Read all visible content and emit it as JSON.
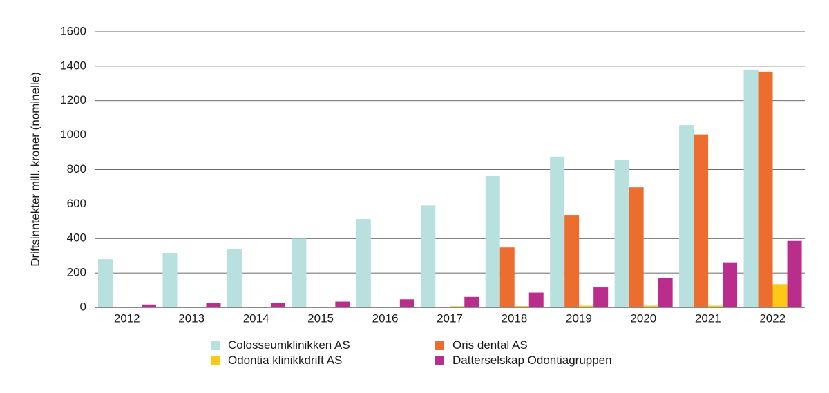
{
  "chart_data": {
    "type": "bar",
    "title": "",
    "xlabel": "",
    "ylabel": "Driftsinntekter mill. kroner (nominelle)",
    "ylim": [
      0,
      1600
    ],
    "yticks": [
      "0",
      "200",
      "400",
      "600",
      "800",
      "1000",
      "1200",
      "1400",
      "1600"
    ],
    "grid": true,
    "legend_position": "bottom",
    "categories": [
      "2012",
      "2013",
      "2014",
      "2015",
      "2016",
      "2017",
      "2018",
      "2019",
      "2020",
      "2021",
      "2022"
    ],
    "series": [
      {
        "name": "Colosseumklinikken AS",
        "color": "#b7e0df",
        "values": [
          280,
          315,
          337,
          400,
          513,
          592,
          762,
          875,
          855,
          1058,
          1380
        ]
      },
      {
        "name": "Oris dental AS",
        "color": "#ec6d2d",
        "values": [
          0,
          0,
          0,
          0,
          0,
          0,
          348,
          533,
          697,
          1004,
          1368
        ]
      },
      {
        "name": "Odontia klinikkdrift AS",
        "color": "#fcc917",
        "values": [
          0,
          0,
          0,
          0,
          0,
          7,
          8,
          10,
          10,
          10,
          135
        ]
      },
      {
        "name": "Datterselskap Odontiagruppen",
        "color": "#b92d8d",
        "values": [
          17,
          24,
          26,
          34,
          47,
          61,
          86,
          116,
          172,
          258,
          386
        ]
      }
    ]
  }
}
